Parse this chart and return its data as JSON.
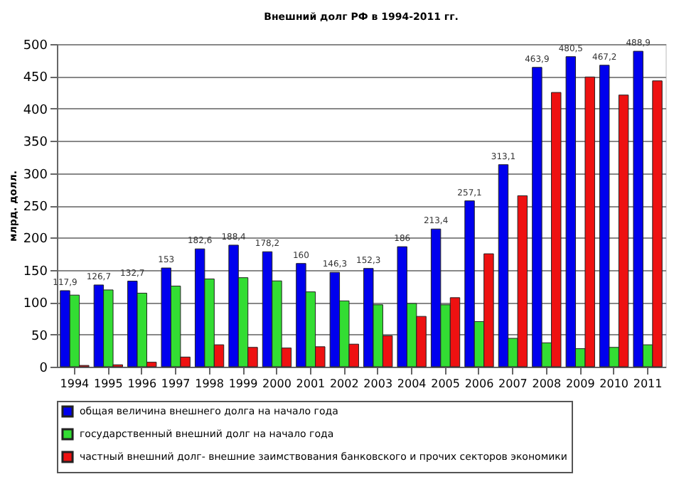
{
  "chart_data": {
    "type": "bar",
    "title": "Внешний долг РФ в 1994-2011 гг.",
    "ylabel": "млрд. долл.",
    "categories": [
      "1994",
      "1995",
      "1996",
      "1997",
      "1998",
      "1999",
      "2000",
      "2001",
      "2002",
      "2003",
      "2004",
      "2005",
      "2006",
      "2007",
      "2008",
      "2009",
      "2010",
      "2011"
    ],
    "series": [
      {
        "name": "общая величина внешнего долга  на начало года",
        "color": "#0000ee",
        "values": [
          117.9,
          126.7,
          132.7,
          153,
          182.6,
          188.4,
          178.2,
          160,
          146.3,
          152.3,
          186,
          213.4,
          257.1,
          313.1,
          463.9,
          480.5,
          467.2,
          488.9
        ],
        "value_labels": [
          "117,9",
          "126,7",
          "132,7",
          "153",
          "182,6",
          "188,4",
          "178,2",
          "160",
          "146,3",
          "152,3",
          "186",
          "213,4",
          "257,1",
          "313,1",
          "463,9",
          "480,5",
          "467,2",
          "488,9"
        ]
      },
      {
        "name": "государственный внешний долг  на начало года",
        "color": "#33dd33",
        "values": [
          111,
          119,
          114,
          125,
          136,
          138,
          133,
          116,
          102,
          96,
          98,
          96,
          70,
          44,
          37,
          28,
          30,
          34
        ]
      },
      {
        "name": "частный внешний долг- внешние заимствования банковского и прочих секторов экономики",
        "color": "#ee1111",
        "values": [
          2,
          3,
          7,
          15,
          34,
          30,
          29,
          31,
          35,
          48,
          78,
          107,
          175,
          265,
          425,
          449,
          421,
          443
        ]
      }
    ],
    "ylim": [
      0,
      500
    ],
    "yticks": [
      0,
      50,
      100,
      150,
      200,
      250,
      300,
      350,
      400,
      450,
      500
    ],
    "grid": "y",
    "legend": "bottom"
  }
}
